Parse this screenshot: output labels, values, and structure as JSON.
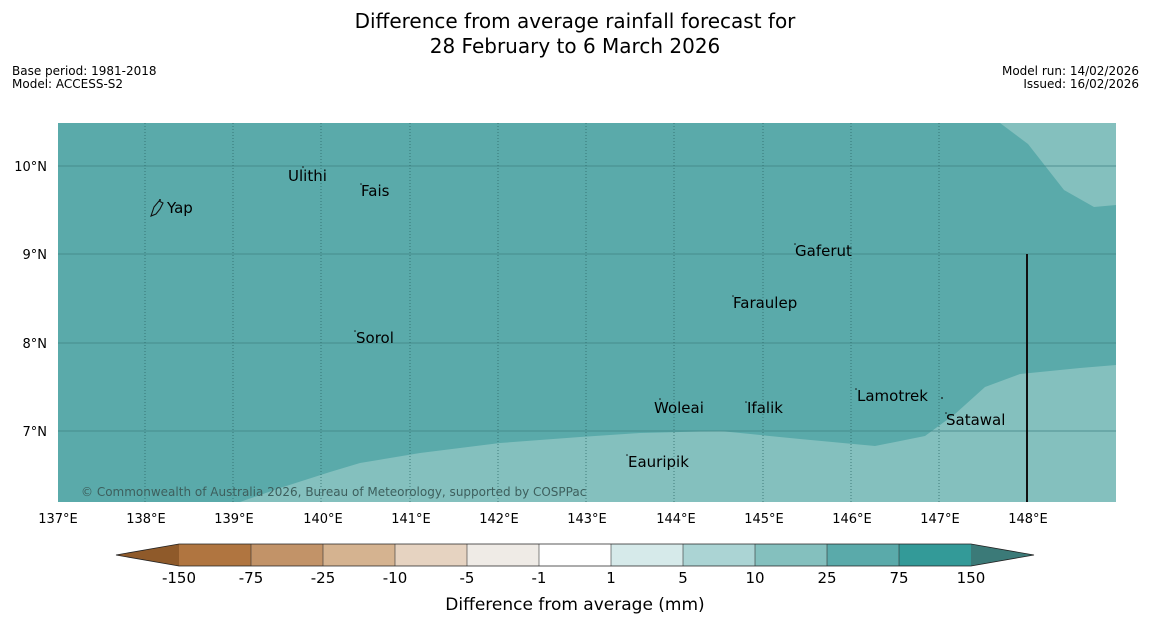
{
  "header": {
    "title_line1": "Difference from average rainfall forecast for",
    "title_line2": "28 February to 6 March 2026",
    "base_period": "Base period: 1981-2018",
    "model": "Model: ACCESS-S2",
    "model_run": "Model run: 14/02/2026",
    "issued": "Issued: 16/02/2026"
  },
  "map": {
    "lat_labels": [
      "10°N",
      "9°N",
      "8°N",
      "7°N"
    ],
    "lon_labels": [
      "137°E",
      "138°E",
      "139°E",
      "140°E",
      "141°E",
      "142°E",
      "143°E",
      "144°E",
      "145°E",
      "146°E",
      "147°E",
      "148°E"
    ],
    "places": [
      "Yap",
      "Ulithi",
      "Fais",
      "Gaferut",
      "Faraulep",
      "Sorol",
      "Woleai",
      "Ifalik",
      "Lamotrek",
      "Satawal",
      "Eauripik"
    ],
    "copyright": "© Commonwealth of Australia 2026, Bureau of Meteorology, supported by COSPPac",
    "colors": {
      "dominant": "#5aaaaa",
      "lighter": "#84c0be"
    }
  },
  "colorbar": {
    "tick_labels": [
      "-150",
      "-75",
      "-25",
      "-10",
      "-5",
      "-1",
      "1",
      "5",
      "10",
      "25",
      "75",
      "150"
    ],
    "label": "Difference from average (mm)",
    "colors": [
      "#8f5a2a",
      "#b07540",
      "#c29368",
      "#d5b390",
      "#e6d3c1",
      "#efebe6",
      "#ffffff",
      "#d6eaea",
      "#abd4d4",
      "#84c0be",
      "#5aaaaa",
      "#339a98",
      "#3b7a78"
    ]
  }
}
